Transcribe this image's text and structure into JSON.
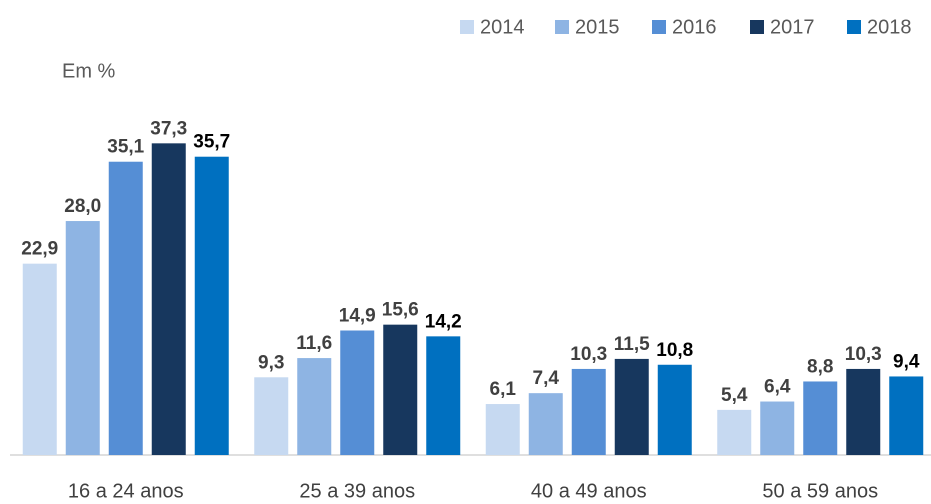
{
  "chart_data": {
    "type": "bar",
    "y_label": "Em %",
    "categories": [
      "16 a 24 anos",
      "25 a 39 anos",
      "40 a 49 anos",
      "50 a 59 anos"
    ],
    "series": [
      {
        "name": "2014",
        "color": "#c6d9f1",
        "values": [
          22.9,
          9.3,
          6.1,
          5.4
        ],
        "value_labels": [
          "22,9",
          "9,3",
          "6,1",
          "5,4"
        ]
      },
      {
        "name": "2015",
        "color": "#8eb4e3",
        "values": [
          28.0,
          11.6,
          7.4,
          6.4
        ],
        "value_labels": [
          "28,0",
          "11,6",
          "7,4",
          "6,4"
        ]
      },
      {
        "name": "2016",
        "color": "#558ed5",
        "values": [
          35.1,
          14.9,
          10.3,
          8.8
        ],
        "value_labels": [
          "35,1",
          "14,9",
          "10,3",
          "8,8"
        ]
      },
      {
        "name": "2017",
        "color": "#17375e",
        "values": [
          37.3,
          15.6,
          11.5,
          10.3
        ],
        "value_labels": [
          "37,3",
          "15,6",
          "11,5",
          "10,3"
        ]
      },
      {
        "name": "2018",
        "color": "#0070c0",
        "values": [
          35.7,
          14.2,
          10.8,
          9.4
        ],
        "value_labels": [
          "35,7",
          "14,2",
          "10,8",
          "9,4"
        ]
      }
    ],
    "ylim": [
      0,
      45
    ],
    "legend": "top-right"
  }
}
